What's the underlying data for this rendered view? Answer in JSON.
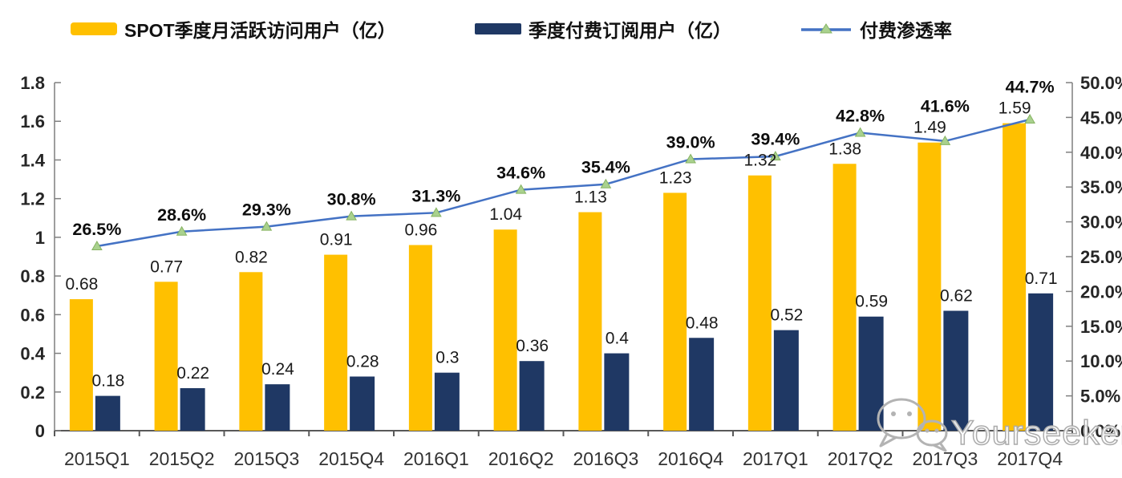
{
  "watermark": {
    "text": "Yourseeker",
    "icon": "wechat-icon"
  },
  "colors": {
    "mau_bar": "#FFC000",
    "subscribers_bar": "#1F3864",
    "penetration_line": "#4472C4",
    "penetration_marker": "#A9D18E",
    "axis_line": "#7f7f7f",
    "bottom_axis_line": "#595959",
    "watermark_gray": "#ababab"
  },
  "chart_data": {
    "type": "bar",
    "subtype": "combo-bar-line-dual-axis",
    "grid": false,
    "legend_position": "top",
    "categories": [
      "2015Q1",
      "2015Q2",
      "2015Q3",
      "2015Q4",
      "2016Q1",
      "2016Q2",
      "2016Q3",
      "2016Q4",
      "2017Q1",
      "2017Q2",
      "2017Q3",
      "2017Q4"
    ],
    "series": [
      {
        "name": "SPOT季度月活跃访问用户（亿）",
        "chart_type": "bar",
        "axis": "left",
        "color": "#FFC000",
        "values": [
          0.68,
          0.77,
          0.82,
          0.91,
          0.96,
          1.04,
          1.13,
          1.23,
          1.32,
          1.38,
          1.49,
          1.59
        ],
        "labels": [
          "0.68",
          "0.77",
          "0.82",
          "0.91",
          "0.96",
          "1.04",
          "1.13",
          "1.23",
          "1.32",
          "1.38",
          "1.49",
          "1.59"
        ]
      },
      {
        "name": "季度付费订阅用户（亿）",
        "chart_type": "bar",
        "axis": "left",
        "color": "#1F3864",
        "values": [
          0.18,
          0.22,
          0.24,
          0.28,
          0.3,
          0.36,
          0.4,
          0.48,
          0.52,
          0.59,
          0.62,
          0.71
        ],
        "labels": [
          "0.18",
          "0.22",
          "0.24",
          "0.28",
          "0.3",
          "0.36",
          "0.4",
          "0.48",
          "0.52",
          "0.59",
          "0.62",
          "0.71"
        ]
      },
      {
        "name": "付费渗透率",
        "chart_type": "line",
        "axis": "right",
        "color": "#4472C4",
        "marker": "triangle",
        "marker_color": "#A9D18E",
        "values": [
          26.5,
          28.6,
          29.3,
          30.8,
          31.3,
          34.6,
          35.4,
          39.0,
          39.4,
          42.8,
          41.6,
          44.7
        ],
        "labels": [
          "26.5%",
          "28.6%",
          "29.3%",
          "30.8%",
          "31.3%",
          "34.6%",
          "35.4%",
          "39.0%",
          "39.4%",
          "42.8%",
          "41.6%",
          "44.7%"
        ]
      }
    ],
    "left_axis": {
      "min": 0,
      "max": 1.8,
      "step": 0.2,
      "tick_labels": [
        "0",
        "0.2",
        "0.4",
        "0.6",
        "0.8",
        "1",
        "1.2",
        "1.4",
        "1.6",
        "1.8"
      ]
    },
    "right_axis": {
      "min": 0,
      "max": 50,
      "step": 5,
      "tick_labels": [
        "0.0%",
        "5.0%",
        "10.0%",
        "15.0%",
        "20.0%",
        "25.0%",
        "30.0%",
        "35.0%",
        "40.0%",
        "45.0%",
        "50.0%"
      ]
    }
  }
}
